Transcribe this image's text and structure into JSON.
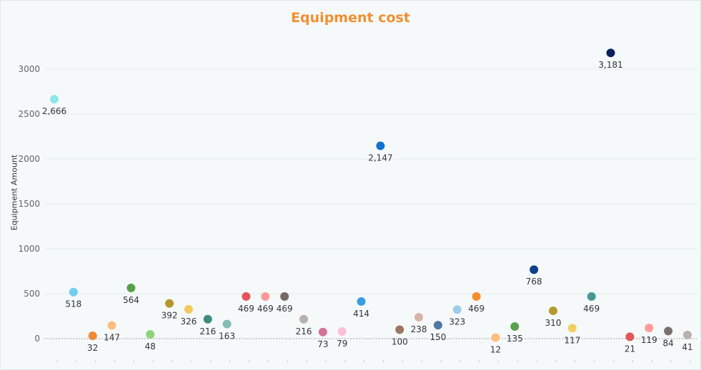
{
  "chart_data": {
    "type": "scatter",
    "title": "Equipment cost",
    "ylabel": "Equipment Amount",
    "ylim": [
      0,
      3300
    ],
    "yticks": [
      0,
      500,
      1000,
      1500,
      2000,
      2500,
      3000
    ],
    "ytick_labels": [
      "0",
      "500",
      "1000",
      "1500",
      "2000",
      "2500",
      "3000"
    ],
    "grid": true,
    "points": [
      {
        "value": 2666,
        "label": "2,666",
        "color": "#8ee8ea"
      },
      {
        "value": 518,
        "label": "518",
        "color": "#6fcdf0"
      },
      {
        "value": 32,
        "label": "32",
        "color": "#ee8a32"
      },
      {
        "value": 147,
        "label": "147",
        "color": "#fbbf80"
      },
      {
        "value": 564,
        "label": "564",
        "color": "#56a04a"
      },
      {
        "value": 48,
        "label": "48",
        "color": "#8ed37a"
      },
      {
        "value": 392,
        "label": "392",
        "color": "#b8962e"
      },
      {
        "value": 326,
        "label": "326",
        "color": "#f2ca5c"
      },
      {
        "value": 216,
        "label": "216",
        "color": "#3e8c80"
      },
      {
        "value": 163,
        "label": "163",
        "color": "#86bcb2"
      },
      {
        "value": 469,
        "label": "469",
        "color": "#e15759"
      },
      {
        "value": 469,
        "label": "469",
        "color": "#fb9a98"
      },
      {
        "value": 469,
        "label": "469",
        "color": "#736a66"
      },
      {
        "value": 216,
        "label": "216",
        "color": "#bab0ac"
      },
      {
        "value": 73,
        "label": "73",
        "color": "#d37295"
      },
      {
        "value": 79,
        "label": "79",
        "color": "#fabfd2"
      },
      {
        "value": 414,
        "label": "414",
        "color": "#3a9de3"
      },
      {
        "value": 2147,
        "label": "2,147",
        "color": "#1371d0"
      },
      {
        "value": 100,
        "label": "100",
        "color": "#9d7660"
      },
      {
        "value": 238,
        "label": "238",
        "color": "#d7b5a6"
      },
      {
        "value": 150,
        "label": "150",
        "color": "#4e79a7"
      },
      {
        "value": 323,
        "label": "323",
        "color": "#a0cbe8"
      },
      {
        "value": 469,
        "label": "469",
        "color": "#f28e2b"
      },
      {
        "value": 12,
        "label": "12",
        "color": "#ffbe7d"
      },
      {
        "value": 135,
        "label": "135",
        "color": "#59a14f"
      },
      {
        "value": 768,
        "label": "768",
        "color": "#0e3f8a"
      },
      {
        "value": 310,
        "label": "310",
        "color": "#b6992d"
      },
      {
        "value": 117,
        "label": "117",
        "color": "#f1ce63"
      },
      {
        "value": 469,
        "label": "469",
        "color": "#499894"
      },
      {
        "value": 3181,
        "label": "3,181",
        "color": "#0b1f5c"
      },
      {
        "value": 21,
        "label": "21",
        "color": "#e15759"
      },
      {
        "value": 119,
        "label": "119",
        "color": "#ff9d9a"
      },
      {
        "value": 84,
        "label": "84",
        "color": "#79706e"
      },
      {
        "value": 41,
        "label": "41",
        "color": "#bab0ac"
      }
    ]
  }
}
